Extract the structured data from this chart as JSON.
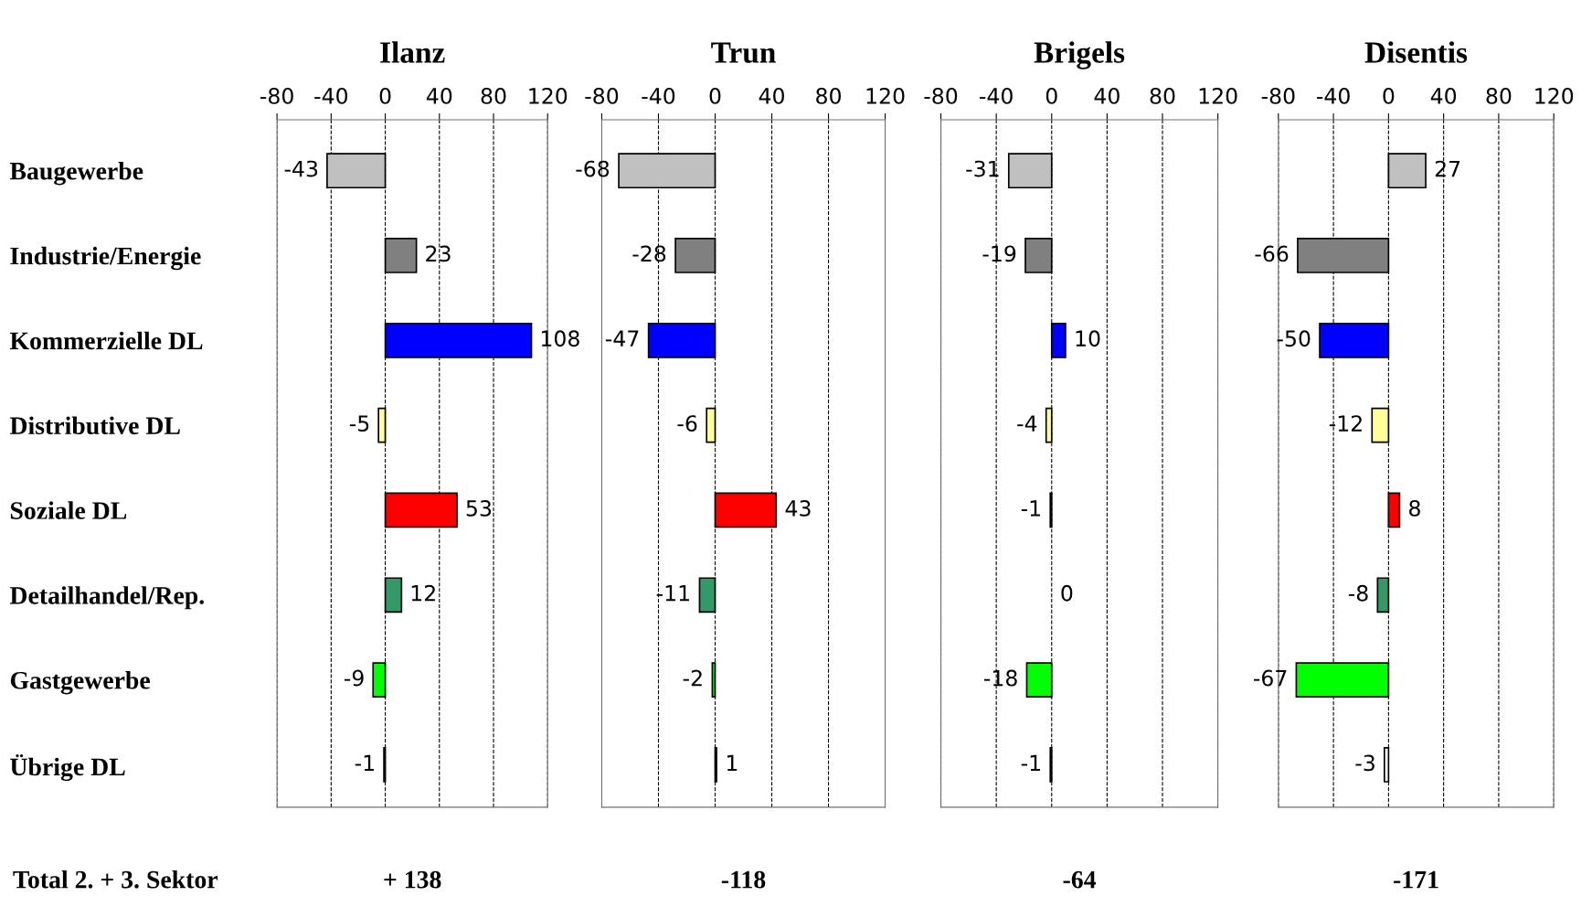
{
  "chart_data": [
    {
      "type": "bar",
      "orientation": "horizontal",
      "title": "Ilanz",
      "categories": [
        "Baugewerbe",
        "Industrie/Energie",
        "Kommerzielle DL",
        "Distributive DL",
        "Soziale DL",
        "Detailhandel/Rep.",
        "Gastgewerbe",
        "Übrige DL"
      ],
      "values": [
        -43,
        23,
        108,
        -5,
        53,
        12,
        -9,
        -1
      ],
      "colors": [
        "#c0c0c0",
        "#808080",
        "#0000ff",
        "#ffff99",
        "#ff0000",
        "#339966",
        "#00ff00",
        "#ffffff"
      ],
      "xlim": [
        -80,
        120
      ],
      "xticks": [
        -80,
        -40,
        0,
        40,
        80,
        120
      ],
      "grid": "x",
      "data_labels": true,
      "annotations": [
        "Total 2. + 3. Sektor",
        "+ 138"
      ]
    },
    {
      "type": "bar",
      "orientation": "horizontal",
      "title": "Trun",
      "categories": [
        null,
        null,
        null,
        null,
        null,
        null,
        null,
        null
      ],
      "values": [
        -68,
        -28,
        -47,
        -6,
        43,
        -11,
        -2,
        1
      ],
      "colors": [
        "#c0c0c0",
        "#808080",
        "#0000ff",
        "#ffff99",
        "#ff0000",
        "#339966",
        "#00ff00",
        "#ffffff"
      ],
      "xlim": [
        -80,
        120
      ],
      "xticks": [
        -80,
        -40,
        0,
        40,
        80,
        120
      ],
      "grid": "x",
      "data_labels": true,
      "tick_labels": "x",
      "annotations": [
        "-118"
      ]
    },
    {
      "type": "bar",
      "orientation": "horizontal",
      "title": "Brigels",
      "categories": [
        null,
        null,
        null,
        null,
        null,
        null,
        null,
        null
      ],
      "values": [
        -31,
        -19,
        10,
        -4,
        -1,
        0,
        -18,
        -1
      ],
      "colors": [
        "#c0c0c0",
        "#808080",
        "#0000ff",
        "#ffff99",
        "#ff0000",
        null,
        "#00ff00",
        "#ffffff"
      ],
      "xlim": [
        -80,
        120
      ],
      "xticks": [
        -80,
        -40,
        0,
        40,
        80,
        120
      ],
      "grid": "x",
      "data_labels": true,
      "tick_labels": "x",
      "annotations": [
        "-64"
      ]
    },
    {
      "type": "bar",
      "orientation": "horizontal",
      "title": "Disentis",
      "categories": [
        null,
        null,
        null,
        null,
        null,
        null,
        null,
        null
      ],
      "values": [
        27,
        -66,
        -50,
        -12,
        8,
        -8,
        -67,
        -3
      ],
      "colors": [
        "#c0c0c0",
        "#808080",
        "#0000ff",
        "#ffff99",
        "#ff0000",
        "#339966",
        "#00ff00",
        "#ffffff"
      ],
      "xlim": [
        -80,
        120
      ],
      "xticks": [
        -80,
        -40,
        0,
        40,
        80,
        120
      ],
      "grid": "x",
      "data_labels": true,
      "tick_labels": "x",
      "annotations": [
        "-171"
      ]
    }
  ]
}
